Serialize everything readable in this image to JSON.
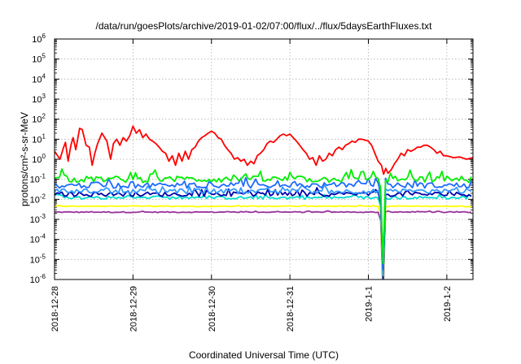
{
  "chart_data": {
    "type": "line",
    "title": "/data/run/goesPlots/archive/2019-01-02/07:00/flux/../flux/5daysEarthFluxes.txt",
    "xlabel": "Coordinated Universal Time (UTC)",
    "ylabel": "protons/cm²-s-sr-MeV",
    "ylim": [
      1e-06,
      1000000.0
    ],
    "yscale": "log",
    "xlim": [
      "2018-12-28 00:00",
      "2019-01-02 08:00"
    ],
    "grid": true,
    "x_tick_labels": [
      "2018-12-28",
      "2018-12-29",
      "2018-12-30",
      "2018-12-31",
      "2019-1-1",
      "2019-1-2"
    ],
    "y_tick_exponents": [
      -6,
      -5,
      -4,
      -3,
      -2,
      -1,
      0,
      1,
      2,
      3,
      4,
      5,
      6
    ],
    "y_tick_base": "10",
    "series": [
      {
        "color": "#ff0000",
        "points": [
          [
            "2018-12-28 00:00",
            2.5
          ],
          [
            "2018-12-28 01:40",
            1.0
          ],
          [
            "2018-12-28 02:40",
            3.5
          ],
          [
            "2018-12-28 03:20",
            7.0
          ],
          [
            "2018-12-28 04:10",
            0.8
          ],
          [
            "2018-12-28 05:00",
            5.0
          ],
          [
            "2018-12-28 05:40",
            12.0
          ],
          [
            "2018-12-28 06:30",
            3.0
          ],
          [
            "2018-12-28 07:40",
            35.0
          ],
          [
            "2018-12-28 08:30",
            30.0
          ],
          [
            "2018-12-28 09:40",
            5.0
          ],
          [
            "2018-12-28 10:40",
            4.0
          ],
          [
            "2018-12-28 11:30",
            0.5
          ],
          [
            "2018-12-28 12:20",
            2.0
          ],
          [
            "2018-12-28 13:10",
            6.0
          ],
          [
            "2018-12-28 14:30",
            20.0
          ],
          [
            "2018-12-28 16:00",
            8.0
          ],
          [
            "2018-12-28 17:10",
            1.0
          ],
          [
            "2018-12-28 18:00",
            6.0
          ],
          [
            "2018-12-28 19:00",
            10.0
          ],
          [
            "2018-12-28 20:00",
            5.0
          ],
          [
            "2018-12-28 21:00",
            12.0
          ],
          [
            "2018-12-28 22:00",
            8.0
          ],
          [
            "2018-12-28 23:00",
            15.0
          ],
          [
            "2018-12-29 00:00",
            45.0
          ],
          [
            "2018-12-29 01:00",
            20.0
          ],
          [
            "2018-12-29 02:00",
            30.0
          ],
          [
            "2018-12-29 03:00",
            12.0
          ],
          [
            "2018-12-29 04:00",
            18.0
          ],
          [
            "2018-12-29 05:00",
            10.0
          ],
          [
            "2018-12-29 06:00",
            8.0
          ],
          [
            "2018-12-29 07:00",
            6.0
          ],
          [
            "2018-12-29 08:00",
            4.0
          ],
          [
            "2018-12-29 09:00",
            2.5
          ],
          [
            "2018-12-29 10:00",
            2.0
          ],
          [
            "2018-12-29 11:00",
            0.8
          ],
          [
            "2018-12-29 12:00",
            1.5
          ],
          [
            "2018-12-29 13:00",
            0.5
          ],
          [
            "2018-12-29 14:00",
            2.0
          ],
          [
            "2018-12-29 15:00",
            0.8
          ],
          [
            "2018-12-29 16:00",
            2.5
          ],
          [
            "2018-12-29 17:00",
            1.0
          ],
          [
            "2018-12-29 18:00",
            3.0
          ],
          [
            "2018-12-29 19:00",
            4.0
          ],
          [
            "2018-12-29 20:00",
            8.0
          ],
          [
            "2018-12-29 21:00",
            12.0
          ],
          [
            "2018-12-29 22:00",
            15.0
          ],
          [
            "2018-12-29 23:00",
            20.0
          ],
          [
            "2018-12-30 00:00",
            25.0
          ],
          [
            "2018-12-30 01:00",
            20.0
          ],
          [
            "2018-12-30 02:00",
            12.0
          ],
          [
            "2018-12-30 03:00",
            10.0
          ],
          [
            "2018-12-30 04:00",
            5.0
          ],
          [
            "2018-12-30 05:00",
            3.0
          ],
          [
            "2018-12-30 06:00",
            2.0
          ],
          [
            "2018-12-30 07:00",
            1.0
          ],
          [
            "2018-12-30 08:00",
            1.2
          ],
          [
            "2018-12-30 09:00",
            0.8
          ],
          [
            "2018-12-30 10:00",
            1.0
          ],
          [
            "2018-12-30 11:00",
            0.5
          ],
          [
            "2018-12-30 12:00",
            0.8
          ],
          [
            "2018-12-30 13:00",
            0.6
          ],
          [
            "2018-12-30 14:00",
            1.5
          ],
          [
            "2018-12-30 15:00",
            2.0
          ],
          [
            "2018-12-30 16:00",
            3.0
          ],
          [
            "2018-12-30 17:00",
            6.0
          ],
          [
            "2018-12-30 18:00",
            8.0
          ],
          [
            "2018-12-30 19:00",
            7.0
          ],
          [
            "2018-12-30 20:00",
            10.0
          ],
          [
            "2018-12-30 21:00",
            15.0
          ],
          [
            "2018-12-30 22:00",
            18.0
          ],
          [
            "2018-12-30 23:00",
            15.0
          ],
          [
            "2018-12-31 00:00",
            18.0
          ],
          [
            "2018-12-31 01:00",
            12.0
          ],
          [
            "2018-12-31 02:00",
            8.0
          ],
          [
            "2018-12-31 03:00",
            5.0
          ],
          [
            "2018-12-31 04:00",
            3.0
          ],
          [
            "2018-12-31 05:00",
            2.0
          ],
          [
            "2018-12-31 06:00",
            1.0
          ],
          [
            "2018-12-31 07:00",
            1.2
          ],
          [
            "2018-12-31 08:00",
            0.5
          ],
          [
            "2018-12-31 09:00",
            1.5
          ],
          [
            "2018-12-31 10:00",
            0.8
          ],
          [
            "2018-12-31 11:00",
            1.0
          ],
          [
            "2018-12-31 12:00",
            2.0
          ],
          [
            "2018-12-31 13:00",
            1.5
          ],
          [
            "2018-12-31 14:00",
            3.0
          ],
          [
            "2018-12-31 15:00",
            4.0
          ],
          [
            "2018-12-31 16:00",
            3.0
          ],
          [
            "2018-12-31 17:00",
            5.0
          ],
          [
            "2018-12-31 18:00",
            6.0
          ],
          [
            "2018-12-31 19:00",
            8.0
          ],
          [
            "2018-12-31 20:00",
            7.0
          ],
          [
            "2018-12-31 21:00",
            10.0
          ],
          [
            "2018-12-31 22:00",
            10.0
          ],
          [
            "2018-12-31 23:00",
            9.0
          ],
          [
            "2019-01-01 00:00",
            8.0
          ],
          [
            "2019-01-01 01:00",
            5.0
          ],
          [
            "2019-01-01 02:00",
            2.0
          ],
          [
            "2019-01-01 03:00",
            0.8
          ],
          [
            "2019-01-01 04:00",
            0.5
          ],
          [
            "2019-01-01 04:40",
            0.18
          ],
          [
            "2019-01-01 05:20",
            0.35
          ],
          [
            "2019-01-01 06:00",
            0.2
          ],
          [
            "2019-01-01 07:00",
            0.3
          ],
          [
            "2019-01-01 08:00",
            0.6
          ],
          [
            "2019-01-01 09:00",
            1.0
          ],
          [
            "2019-01-01 10:00",
            2.0
          ],
          [
            "2019-01-01 11:00",
            1.5
          ],
          [
            "2019-01-01 12:00",
            3.0
          ],
          [
            "2019-01-01 13:00",
            2.5
          ],
          [
            "2019-01-01 14:00",
            3.0
          ],
          [
            "2019-01-01 15:00",
            4.0
          ],
          [
            "2019-01-01 16:00",
            4.0
          ],
          [
            "2019-01-01 17:00",
            5.0
          ],
          [
            "2019-01-01 18:00",
            5.0
          ],
          [
            "2019-01-01 19:00",
            4.0
          ],
          [
            "2019-01-01 20:00",
            3.0
          ],
          [
            "2019-01-01 21:00",
            2.0
          ],
          [
            "2019-01-01 22:00",
            2.5
          ],
          [
            "2019-01-01 23:00",
            1.5
          ],
          [
            "2019-01-02 00:00",
            1.5
          ],
          [
            "2019-01-02 02:00",
            1.2
          ],
          [
            "2019-01-02 04:00",
            1.3
          ],
          [
            "2019-01-02 06:00",
            1.0
          ],
          [
            "2019-01-02 08:00",
            1.2
          ]
        ]
      },
      {
        "color": "#00ee00",
        "base": 0.1,
        "jitter": 0.32,
        "spikes": 0.7
      },
      {
        "color": "#1e6bff",
        "base": 0.05,
        "jitter": 0.28,
        "spikes": 0.5
      },
      {
        "color": "#00ddcc",
        "base": 0.012,
        "jitter": 0.15,
        "spikes": 0.3
      },
      {
        "color": "#0000aa",
        "base": 0.018,
        "jitter": 0.22,
        "spikes": 0.45
      },
      {
        "color": "#3399ff",
        "base": 0.025,
        "jitter": 0.24,
        "spikes": 0.4
      },
      {
        "color": "#ffff00",
        "base": 0.0045,
        "jitter": 0.04,
        "spikes": 0.05
      },
      {
        "color": "#993399",
        "base": 0.0023,
        "jitter": 0.05,
        "spikes": 0.1
      }
    ],
    "dropout": [
      "2019-01-01 03:40",
      "2019-01-01 05:00"
    ]
  }
}
